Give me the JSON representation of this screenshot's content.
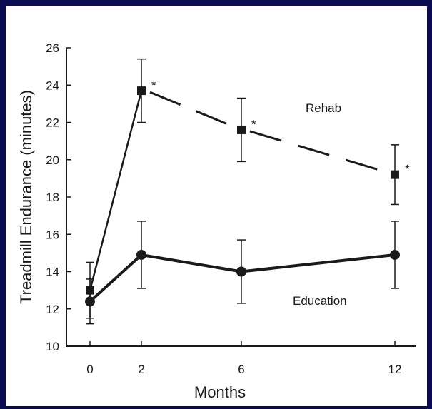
{
  "chart_data": {
    "type": "line",
    "title": "",
    "xlabel": "Months",
    "ylabel": "Treadmill Endurance (minutes)",
    "x": [
      0,
      2,
      6,
      12
    ],
    "x_ticks": [
      "0",
      "2",
      "6",
      "12"
    ],
    "ylim": [
      10,
      26
    ],
    "y_ticks": [
      "10",
      "12",
      "14",
      "16",
      "18",
      "20",
      "22",
      "24",
      "26"
    ],
    "grid": false,
    "legend": "none",
    "series": [
      {
        "name": "Rehab",
        "marker": "square",
        "line_style": "dashed after month 2",
        "values": [
          13.0,
          23.7,
          21.6,
          19.2
        ],
        "error": [
          1.5,
          1.7,
          1.7,
          1.6
        ],
        "significance": [
          "",
          "*",
          "*",
          "*"
        ]
      },
      {
        "name": "Education",
        "marker": "circle",
        "line_style": "solid",
        "values": [
          12.4,
          14.9,
          14.0,
          14.9
        ],
        "error": [
          1.2,
          1.8,
          1.7,
          1.8
        ],
        "significance": [
          "",
          "",
          "",
          ""
        ]
      }
    ],
    "colors": {
      "ink": "#1a1a1a",
      "frame": "#0a0a4e",
      "paper": "#ffffff"
    }
  }
}
